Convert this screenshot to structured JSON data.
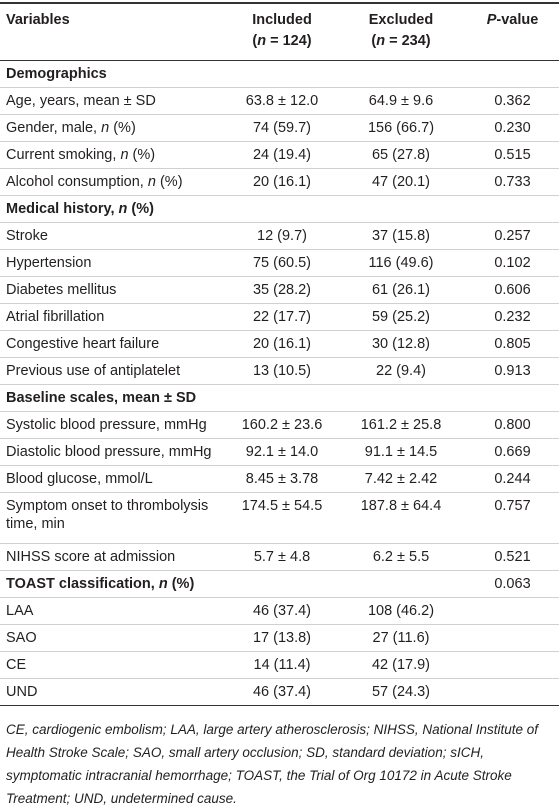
{
  "header": [
    {
      "lines": [
        [
          "Variables"
        ]
      ]
    },
    {
      "lines": [
        [
          "Included"
        ],
        [
          "(",
          {
            "italic": "n"
          },
          " = 124)"
        ]
      ]
    },
    {
      "lines": [
        [
          "Excluded"
        ],
        [
          "(",
          {
            "italic": "n"
          },
          " = 234)"
        ]
      ]
    },
    {
      "lines": [
        [
          {
            "italic": "P"
          },
          "-value"
        ]
      ]
    }
  ],
  "rows": [
    {
      "kind": "section",
      "label": [
        "Demographics"
      ],
      "values": []
    },
    {
      "kind": "data",
      "label": [
        "Age, years, mean ± SD"
      ],
      "values": [
        "63.8 ± 12.0",
        "64.9 ± 9.6",
        "0.362"
      ]
    },
    {
      "kind": "data",
      "label": [
        "Gender, male, ",
        {
          "italic": "n"
        },
        " (%)"
      ],
      "values": [
        "74 (59.7)",
        "156 (66.7)",
        "0.230"
      ]
    },
    {
      "kind": "data",
      "label": [
        "Current smoking, ",
        {
          "italic": "n"
        },
        " (%)"
      ],
      "values": [
        "24 (19.4)",
        "65 (27.8)",
        "0.515"
      ]
    },
    {
      "kind": "data",
      "label": [
        "Alcohol consumption, ",
        {
          "italic": "n"
        },
        " (%)"
      ],
      "values": [
        "20 (16.1)",
        "47 (20.1)",
        "0.733"
      ]
    },
    {
      "kind": "section",
      "label": [
        "Medical history, ",
        {
          "italic": "n"
        },
        " (%)"
      ],
      "values": []
    },
    {
      "kind": "data",
      "label": [
        "Stroke"
      ],
      "values": [
        "12 (9.7)",
        "37 (15.8)",
        "0.257"
      ]
    },
    {
      "kind": "data",
      "label": [
        "Hypertension"
      ],
      "values": [
        "75 (60.5)",
        "116 (49.6)",
        "0.102"
      ]
    },
    {
      "kind": "data",
      "label": [
        "Diabetes mellitus"
      ],
      "values": [
        "35 (28.2)",
        "61 (26.1)",
        "0.606"
      ]
    },
    {
      "kind": "data",
      "label": [
        "Atrial fibrillation"
      ],
      "values": [
        "22 (17.7)",
        "59 (25.2)",
        "0.232"
      ]
    },
    {
      "kind": "data",
      "label": [
        "Congestive heart failure"
      ],
      "values": [
        "20 (16.1)",
        "30 (12.8)",
        "0.805"
      ]
    },
    {
      "kind": "data",
      "label": [
        "Previous use of antiplatelet"
      ],
      "values": [
        "13 (10.5)",
        "22 (9.4)",
        "0.913"
      ]
    },
    {
      "kind": "section",
      "label": [
        "Baseline scales, mean ± SD"
      ],
      "values": []
    },
    {
      "kind": "data",
      "label": [
        "Systolic blood pressure, mmHg"
      ],
      "values": [
        "160.2 ± 23.6",
        "161.2 ± 25.8",
        "0.800"
      ]
    },
    {
      "kind": "data",
      "label": [
        "Diastolic blood pressure, mmHg"
      ],
      "values": [
        "92.1 ± 14.0",
        "91.1 ± 14.5",
        "0.669"
      ]
    },
    {
      "kind": "data",
      "label": [
        "Blood glucose, mmol/L"
      ],
      "values": [
        "8.45 ± 3.78",
        "7.42 ± 2.42",
        "0.244"
      ]
    },
    {
      "kind": "data",
      "label": [
        "Symptom onset to thrombolysis time, min"
      ],
      "values": [
        "174.5 ± 54.5",
        "187.8 ± 64.4",
        "0.757"
      ]
    },
    {
      "kind": "data",
      "label": [
        "NIHSS score at admission"
      ],
      "values": [
        "5.7 ± 4.8",
        "6.2 ± 5.5",
        "0.521"
      ]
    },
    {
      "kind": "section",
      "label": [
        "TOAST classification, ",
        {
          "italic": "n"
        },
        " (%)"
      ],
      "values": [
        "0.063"
      ]
    },
    {
      "kind": "data",
      "label": [
        "LAA"
      ],
      "values": [
        "46 (37.4)",
        "108 (46.2)"
      ]
    },
    {
      "kind": "data",
      "label": [
        "SAO"
      ],
      "values": [
        "17 (13.8)",
        "27 (11.6)"
      ]
    },
    {
      "kind": "data",
      "label": [
        "CE"
      ],
      "values": [
        "14 (11.4)",
        "42 (17.9)"
      ]
    },
    {
      "kind": "data",
      "label": [
        "UND"
      ],
      "values": [
        "46 (37.4)",
        "57 (24.3)"
      ]
    }
  ],
  "footnote": "CE, cardiogenic embolism; LAA, large artery atherosclerosis; NIHSS, National Institute of Health Stroke Scale; SAO, small artery occlusion; SD, standard deviation; sICH, symptomatic intracranial hemorrhage; TOAST, the Trial of Org 10172 in Acute Stroke Treatment; UND, undetermined cause."
}
